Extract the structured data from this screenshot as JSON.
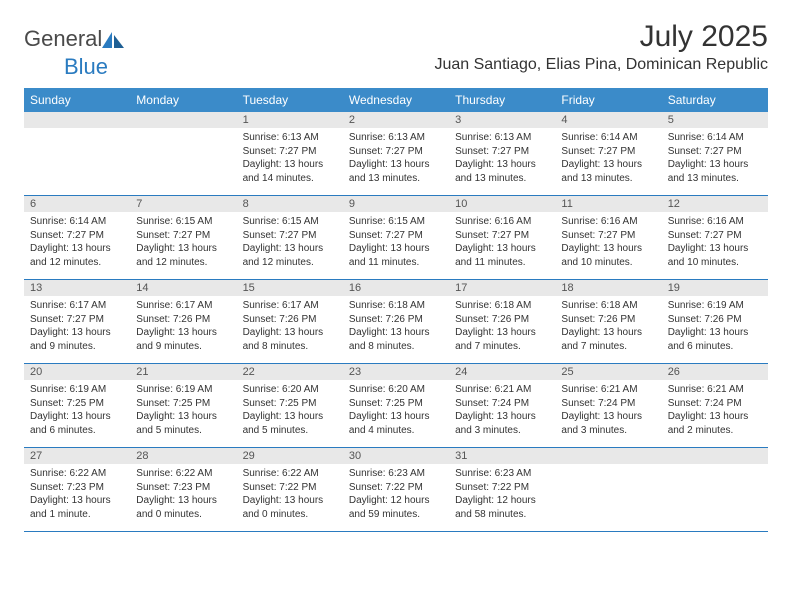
{
  "brand": {
    "part1": "General",
    "part2": "Blue"
  },
  "title": "July 2025",
  "location": "Juan Santiago, Elias Pina, Dominican Republic",
  "colors": {
    "header_bg": "#3b8bc9",
    "header_text": "#ffffff",
    "daynum_bg": "#e8e8e8",
    "rule": "#2a7bc0",
    "brand_blue": "#2a7bc0",
    "text": "#333333"
  },
  "typography": {
    "title_fontsize": 30,
    "location_fontsize": 16,
    "header_fontsize": 12,
    "body_fontsize": 10
  },
  "day_headers": [
    "Sunday",
    "Monday",
    "Tuesday",
    "Wednesday",
    "Thursday",
    "Friday",
    "Saturday"
  ],
  "weeks": [
    [
      null,
      null,
      {
        "n": "1",
        "sr": "Sunrise: 6:13 AM",
        "ss": "Sunset: 7:27 PM",
        "dl": "Daylight: 13 hours and 14 minutes."
      },
      {
        "n": "2",
        "sr": "Sunrise: 6:13 AM",
        "ss": "Sunset: 7:27 PM",
        "dl": "Daylight: 13 hours and 13 minutes."
      },
      {
        "n": "3",
        "sr": "Sunrise: 6:13 AM",
        "ss": "Sunset: 7:27 PM",
        "dl": "Daylight: 13 hours and 13 minutes."
      },
      {
        "n": "4",
        "sr": "Sunrise: 6:14 AM",
        "ss": "Sunset: 7:27 PM",
        "dl": "Daylight: 13 hours and 13 minutes."
      },
      {
        "n": "5",
        "sr": "Sunrise: 6:14 AM",
        "ss": "Sunset: 7:27 PM",
        "dl": "Daylight: 13 hours and 13 minutes."
      }
    ],
    [
      {
        "n": "6",
        "sr": "Sunrise: 6:14 AM",
        "ss": "Sunset: 7:27 PM",
        "dl": "Daylight: 13 hours and 12 minutes."
      },
      {
        "n": "7",
        "sr": "Sunrise: 6:15 AM",
        "ss": "Sunset: 7:27 PM",
        "dl": "Daylight: 13 hours and 12 minutes."
      },
      {
        "n": "8",
        "sr": "Sunrise: 6:15 AM",
        "ss": "Sunset: 7:27 PM",
        "dl": "Daylight: 13 hours and 12 minutes."
      },
      {
        "n": "9",
        "sr": "Sunrise: 6:15 AM",
        "ss": "Sunset: 7:27 PM",
        "dl": "Daylight: 13 hours and 11 minutes."
      },
      {
        "n": "10",
        "sr": "Sunrise: 6:16 AM",
        "ss": "Sunset: 7:27 PM",
        "dl": "Daylight: 13 hours and 11 minutes."
      },
      {
        "n": "11",
        "sr": "Sunrise: 6:16 AM",
        "ss": "Sunset: 7:27 PM",
        "dl": "Daylight: 13 hours and 10 minutes."
      },
      {
        "n": "12",
        "sr": "Sunrise: 6:16 AM",
        "ss": "Sunset: 7:27 PM",
        "dl": "Daylight: 13 hours and 10 minutes."
      }
    ],
    [
      {
        "n": "13",
        "sr": "Sunrise: 6:17 AM",
        "ss": "Sunset: 7:27 PM",
        "dl": "Daylight: 13 hours and 9 minutes."
      },
      {
        "n": "14",
        "sr": "Sunrise: 6:17 AM",
        "ss": "Sunset: 7:26 PM",
        "dl": "Daylight: 13 hours and 9 minutes."
      },
      {
        "n": "15",
        "sr": "Sunrise: 6:17 AM",
        "ss": "Sunset: 7:26 PM",
        "dl": "Daylight: 13 hours and 8 minutes."
      },
      {
        "n": "16",
        "sr": "Sunrise: 6:18 AM",
        "ss": "Sunset: 7:26 PM",
        "dl": "Daylight: 13 hours and 8 minutes."
      },
      {
        "n": "17",
        "sr": "Sunrise: 6:18 AM",
        "ss": "Sunset: 7:26 PM",
        "dl": "Daylight: 13 hours and 7 minutes."
      },
      {
        "n": "18",
        "sr": "Sunrise: 6:18 AM",
        "ss": "Sunset: 7:26 PM",
        "dl": "Daylight: 13 hours and 7 minutes."
      },
      {
        "n": "19",
        "sr": "Sunrise: 6:19 AM",
        "ss": "Sunset: 7:26 PM",
        "dl": "Daylight: 13 hours and 6 minutes."
      }
    ],
    [
      {
        "n": "20",
        "sr": "Sunrise: 6:19 AM",
        "ss": "Sunset: 7:25 PM",
        "dl": "Daylight: 13 hours and 6 minutes."
      },
      {
        "n": "21",
        "sr": "Sunrise: 6:19 AM",
        "ss": "Sunset: 7:25 PM",
        "dl": "Daylight: 13 hours and 5 minutes."
      },
      {
        "n": "22",
        "sr": "Sunrise: 6:20 AM",
        "ss": "Sunset: 7:25 PM",
        "dl": "Daylight: 13 hours and 5 minutes."
      },
      {
        "n": "23",
        "sr": "Sunrise: 6:20 AM",
        "ss": "Sunset: 7:25 PM",
        "dl": "Daylight: 13 hours and 4 minutes."
      },
      {
        "n": "24",
        "sr": "Sunrise: 6:21 AM",
        "ss": "Sunset: 7:24 PM",
        "dl": "Daylight: 13 hours and 3 minutes."
      },
      {
        "n": "25",
        "sr": "Sunrise: 6:21 AM",
        "ss": "Sunset: 7:24 PM",
        "dl": "Daylight: 13 hours and 3 minutes."
      },
      {
        "n": "26",
        "sr": "Sunrise: 6:21 AM",
        "ss": "Sunset: 7:24 PM",
        "dl": "Daylight: 13 hours and 2 minutes."
      }
    ],
    [
      {
        "n": "27",
        "sr": "Sunrise: 6:22 AM",
        "ss": "Sunset: 7:23 PM",
        "dl": "Daylight: 13 hours and 1 minute."
      },
      {
        "n": "28",
        "sr": "Sunrise: 6:22 AM",
        "ss": "Sunset: 7:23 PM",
        "dl": "Daylight: 13 hours and 0 minutes."
      },
      {
        "n": "29",
        "sr": "Sunrise: 6:22 AM",
        "ss": "Sunset: 7:22 PM",
        "dl": "Daylight: 13 hours and 0 minutes."
      },
      {
        "n": "30",
        "sr": "Sunrise: 6:23 AM",
        "ss": "Sunset: 7:22 PM",
        "dl": "Daylight: 12 hours and 59 minutes."
      },
      {
        "n": "31",
        "sr": "Sunrise: 6:23 AM",
        "ss": "Sunset: 7:22 PM",
        "dl": "Daylight: 12 hours and 58 minutes."
      },
      null,
      null
    ]
  ]
}
